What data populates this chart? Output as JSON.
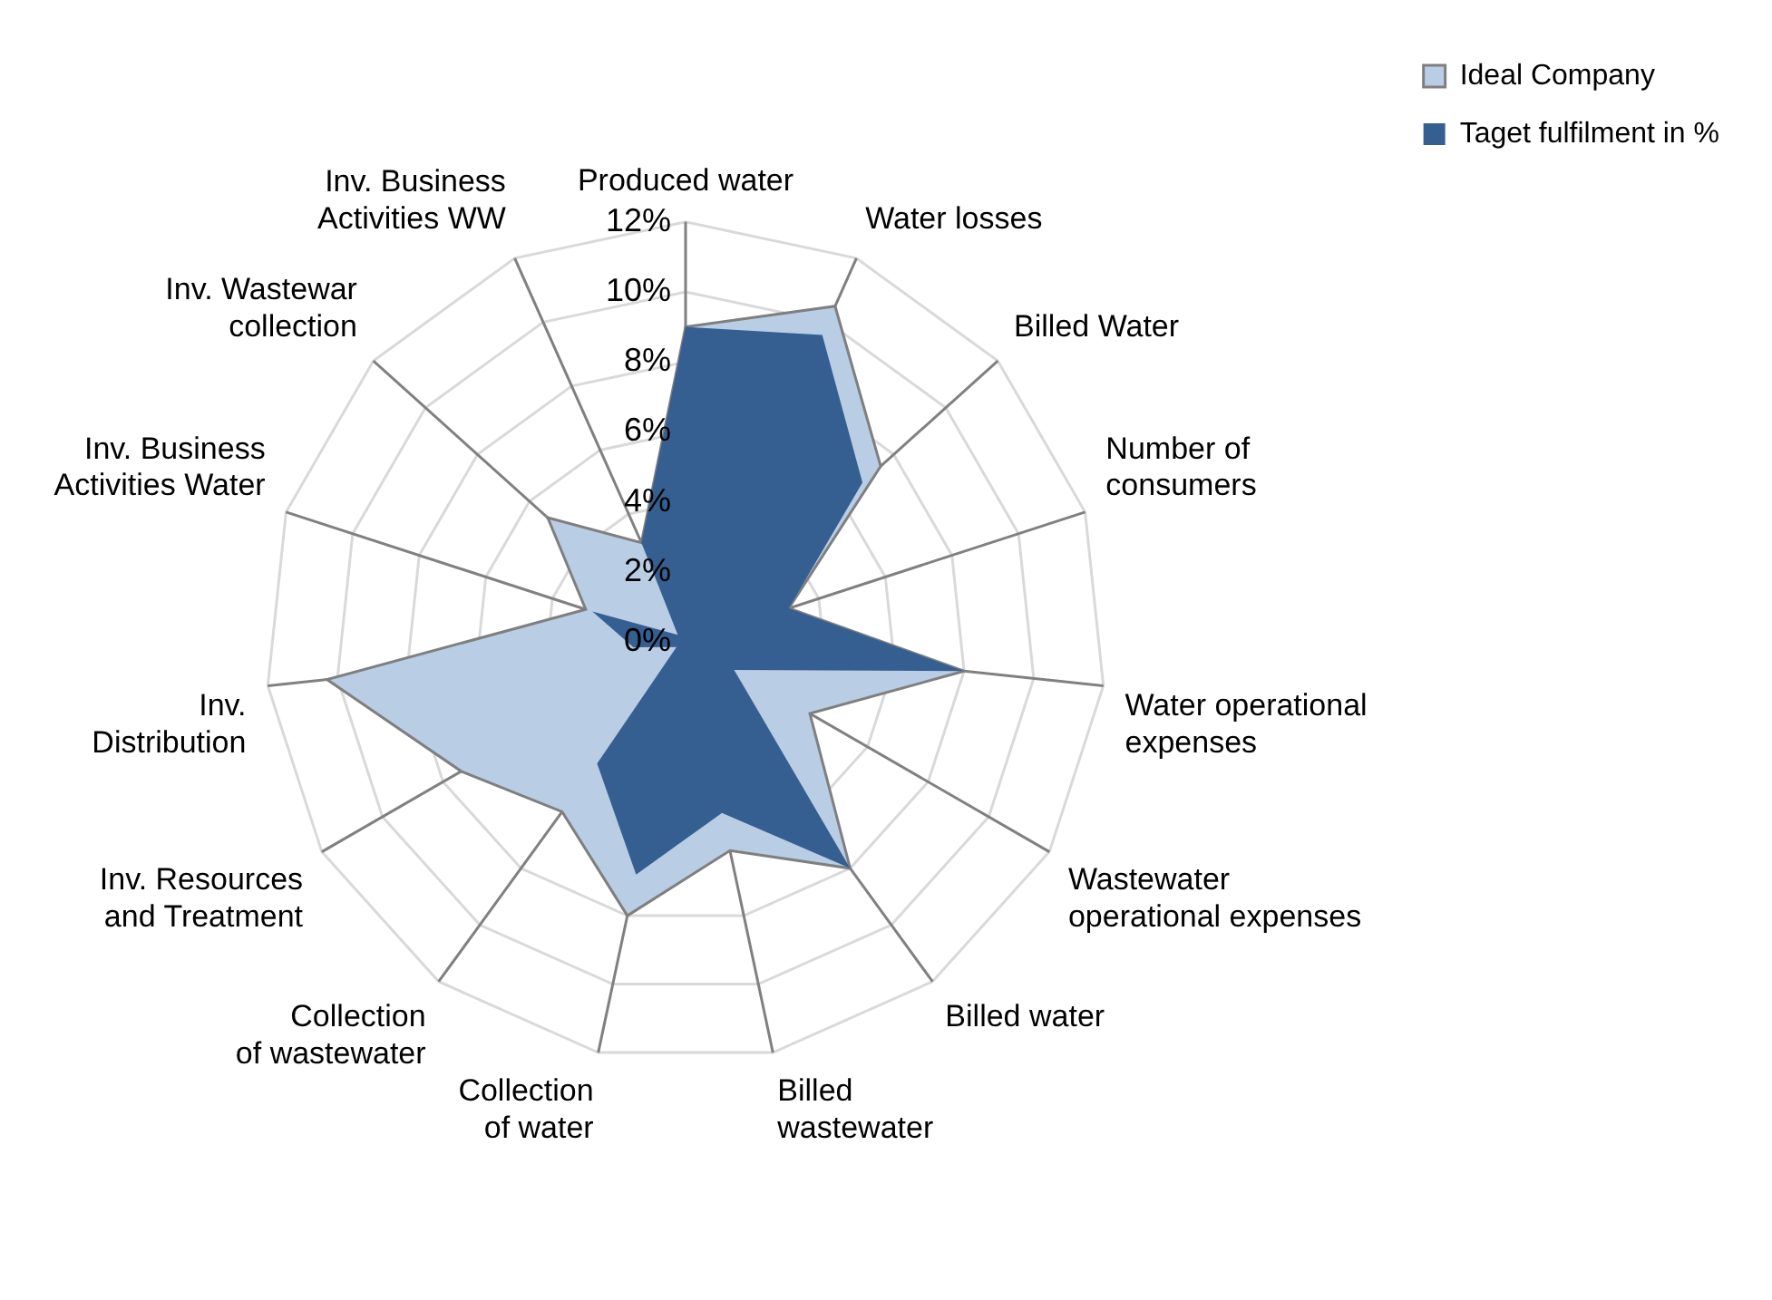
{
  "chart_data": {
    "type": "radar",
    "categories": [
      "Produced water",
      "Water losses",
      "Billed Water",
      "Number of consumers",
      "Water operational expenses",
      "Wastewater operational expenses",
      "Billed water",
      "Billed wastewater",
      "Collection of water",
      "Collection of wastewater",
      "Inv. Resources and Treatment",
      "Inv. Distribution",
      "Inv. Business Activities Water",
      "Inv. Wastewar collection",
      "Inv. Business Activities WW"
    ],
    "series": [
      {
        "name": "Ideal Company",
        "color": "#b9cde5",
        "values": [
          9,
          10.5,
          7.5,
          3.1,
          8,
          4.1,
          8,
          6.1,
          8,
          6,
          7.4,
          10.3,
          3,
          5.3,
          3.1
        ]
      },
      {
        "name": "Taget fulfilment in %",
        "color": "#365f91",
        "values": [
          9,
          9.6,
          6.8,
          3.1,
          8,
          1.6,
          8,
          5,
          6.8,
          4.3,
          0.3,
          1.5,
          2.8,
          0.3,
          3.1
        ]
      }
    ],
    "ylim": [
      0,
      12
    ],
    "yticks": [
      {
        "value": 0,
        "label": "0%"
      },
      {
        "value": 2,
        "label": "2%"
      },
      {
        "value": 4,
        "label": "4%"
      },
      {
        "value": 6,
        "label": "6%"
      },
      {
        "value": 8,
        "label": "8%"
      },
      {
        "value": 10,
        "label": "10%"
      },
      {
        "value": 12,
        "label": "12%"
      }
    ],
    "grid": true,
    "legend": "top right",
    "marker": "none"
  }
}
